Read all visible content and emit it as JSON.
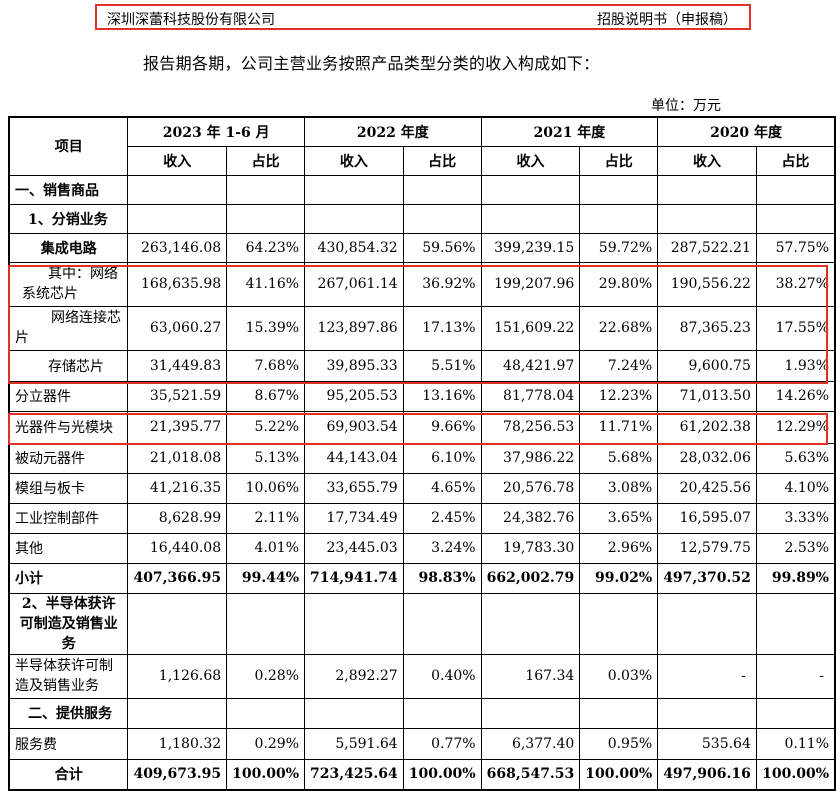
{
  "header": {
    "company": "深圳深蕾科技股份有限公司",
    "doc": "招股说明书（申报稿）"
  },
  "intro": "报告期各期，公司主营业务按照产品类型分类的收入构成如下：",
  "unit": "单位：万元",
  "table": {
    "item_header": "项目",
    "periods": [
      "2023 年 1-6 月",
      "2022 年度",
      "2021 年度",
      "2020 年度"
    ],
    "sub_headers": {
      "revenue": "收入",
      "share": "占比"
    },
    "rows": [
      {
        "label": "一、销售商品",
        "values": [
          "",
          "",
          "",
          "",
          "",
          "",
          "",
          ""
        ]
      },
      {
        "label": "1、分销业务",
        "values": [
          "",
          "",
          "",
          "",
          "",
          "",
          "",
          ""
        ]
      },
      {
        "label": "集成电路",
        "values": [
          "263,146.08",
          "64.23%",
          "430,854.32",
          "59.56%",
          "399,239.15",
          "59.72%",
          "287,522.21",
          "57.75%"
        ]
      },
      {
        "label": "其中：网络系统芯片",
        "values": [
          "168,635.98",
          "41.16%",
          "267,061.14",
          "36.92%",
          "199,207.96",
          "29.80%",
          "190,556.22",
          "38.27%"
        ]
      },
      {
        "label": "网络连接芯片",
        "values": [
          "63,060.27",
          "15.39%",
          "123,897.86",
          "17.13%",
          "151,609.22",
          "22.68%",
          "87,365.23",
          "17.55%"
        ]
      },
      {
        "label": "存储芯片",
        "values": [
          "31,449.83",
          "7.68%",
          "39,895.33",
          "5.51%",
          "48,421.97",
          "7.24%",
          "9,600.75",
          "1.93%"
        ]
      },
      {
        "label": "分立器件",
        "values": [
          "35,521.59",
          "8.67%",
          "95,205.53",
          "13.16%",
          "81,778.04",
          "12.23%",
          "71,013.50",
          "14.26%"
        ]
      },
      {
        "label": "光器件与光模块",
        "values": [
          "21,395.77",
          "5.22%",
          "69,903.54",
          "9.66%",
          "78,256.53",
          "11.71%",
          "61,202.38",
          "12.29%"
        ]
      },
      {
        "label": "被动元器件",
        "values": [
          "21,018.08",
          "5.13%",
          "44,143.04",
          "6.10%",
          "37,986.22",
          "5.68%",
          "28,032.06",
          "5.63%"
        ]
      },
      {
        "label": "模组与板卡",
        "values": [
          "41,216.35",
          "10.06%",
          "33,655.79",
          "4.65%",
          "20,576.78",
          "3.08%",
          "20,425.56",
          "4.10%"
        ]
      },
      {
        "label": "工业控制部件",
        "values": [
          "8,628.99",
          "2.11%",
          "17,734.49",
          "2.45%",
          "24,382.76",
          "3.65%",
          "16,595.07",
          "3.33%"
        ]
      },
      {
        "label": "其他",
        "values": [
          "16,440.08",
          "4.01%",
          "23,445.03",
          "3.24%",
          "19,783.30",
          "2.96%",
          "12,579.75",
          "2.53%"
        ]
      },
      {
        "label": "小计",
        "values": [
          "407,366.95",
          "99.44%",
          "714,941.74",
          "98.83%",
          "662,002.79",
          "99.02%",
          "497,370.52",
          "99.89%"
        ]
      },
      {
        "label": "2、半导体获许可制造及销售业务",
        "values": [
          "",
          "",
          "",
          "",
          "",
          "",
          "",
          ""
        ]
      },
      {
        "label": "半导体获许可制造及销售业务",
        "values": [
          "1,126.68",
          "0.28%",
          "2,892.27",
          "0.40%",
          "167.34",
          "0.03%",
          "-",
          "-"
        ]
      },
      {
        "label": "二、提供服务",
        "values": [
          "",
          "",
          "",
          "",
          "",
          "",
          "",
          ""
        ]
      },
      {
        "label": "服务费",
        "values": [
          "1,180.32",
          "0.29%",
          "5,591.64",
          "0.77%",
          "6,377.40",
          "0.95%",
          "535.64",
          "0.11%"
        ]
      },
      {
        "label": "合计",
        "values": [
          "409,673.95",
          "100.00%",
          "723,425.64",
          "100.00%",
          "668,547.53",
          "100.00%",
          "497,906.16",
          "100.00%"
        ]
      }
    ]
  },
  "colors": {
    "highlight": "#e0302a"
  }
}
